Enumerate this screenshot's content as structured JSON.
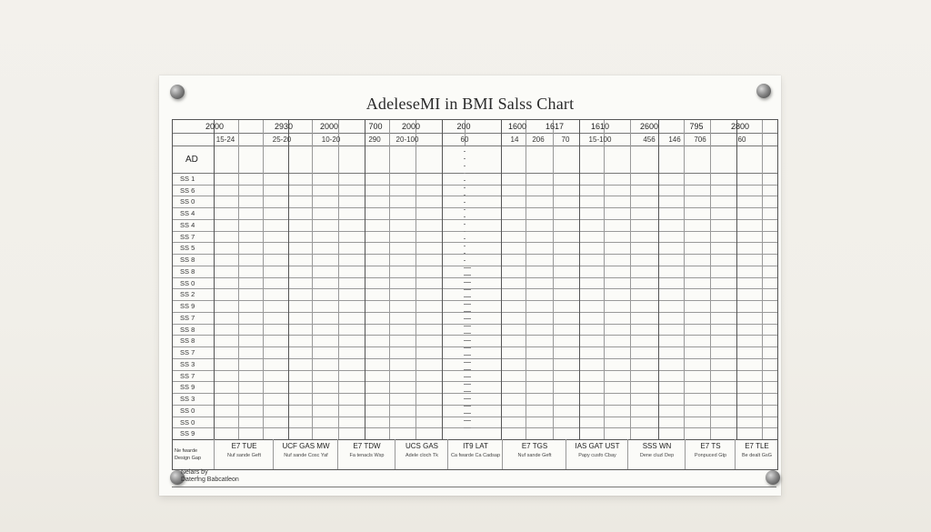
{
  "title": "AdeleseMI in BMI Salss Chart",
  "header_top": [
    "2000",
    "2930",
    "2000",
    "700",
    "2000",
    "200",
    "1600",
    "1617",
    "1610",
    "2600",
    "795",
    "2800"
  ],
  "header_sub": [
    "15-24",
    "25-20",
    "10-20",
    "290",
    "20-100",
    "60",
    "14",
    "206",
    "70",
    "15-100",
    "456",
    "146",
    "706",
    "60"
  ],
  "ad_label": "AD",
  "row_labels": [
    "SS 1",
    "SS 6",
    "SS 0",
    "SS 4",
    "SS 4",
    "SS 7",
    "SS 5",
    "SS 8",
    "SS 8",
    "SS 0",
    "SS 2",
    "SS 9",
    "SS 7",
    "SS 8",
    "SS 8",
    "SS 7",
    "SS 3",
    "SS 7",
    "SS 9",
    "SS 3",
    "SS 0",
    "SS 0",
    "SS 9"
  ],
  "footer_label": [
    "Ne fwarde",
    "Design Gap"
  ],
  "footer_cells": [
    {
      "top": "E7 TUE",
      "sub": "Nuf sande Geft"
    },
    {
      "top": "UCF  GAS  MW",
      "sub": "Nuf sande Cosc Yaf"
    },
    {
      "top": "E7 TDW",
      "sub": "Fa tenacls Wsp"
    },
    {
      "top": "UCS  GAS",
      "sub": "Adele cloch Tk"
    },
    {
      "top": "IT9  LAT",
      "sub": "Ca fwarde Ca Cadsap"
    },
    {
      "top": "E7 TGS",
      "sub": "Nuf sande Geft"
    },
    {
      "top": "IAS  GAT  UST",
      "sub": "Papy cusfo Cbay"
    },
    {
      "top": "SSS  WN",
      "sub": "Dene cluzl Dep"
    },
    {
      "top": "E7 TS",
      "sub": "Ponpuced Gtp"
    },
    {
      "top": "E7 TLE",
      "sub": "Be dealt GsG"
    }
  ],
  "note": [
    "Nelars by",
    "Daterfng Babcatleon"
  ]
}
